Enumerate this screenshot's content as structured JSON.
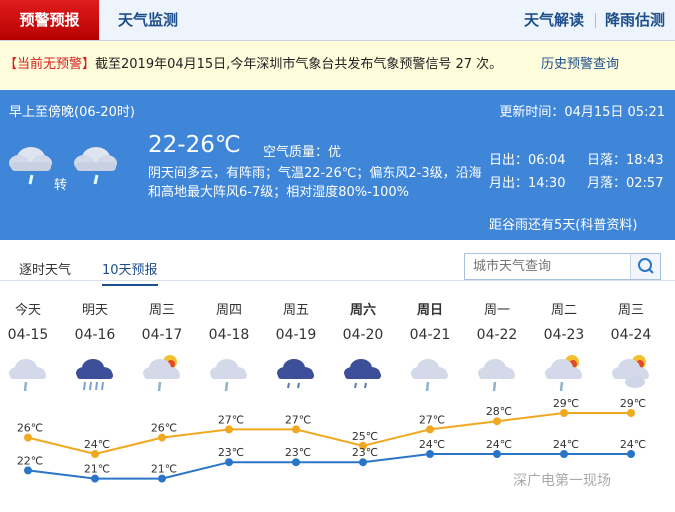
{
  "nav": {
    "active": "预警预报",
    "monitor": "天气监测",
    "interpret": "天气解读",
    "rain": "降雨估测"
  },
  "warning": {
    "status": "【当前无预警】",
    "text": "截至2019年04月15日,今年深圳市气象台共发布气象预警信号 27 次。",
    "history": "历史预警查询"
  },
  "today": {
    "period": "早上至傍晚(06-20时)",
    "updated": "更新时间：04月15日 05:21",
    "temp": "22-26℃",
    "air": "空气质量：优",
    "desc": "阴天间多云，有阵雨；气温22-26℃；偏东风2-3级，沿海和高地最大阵风6-7级；相对湿度80%-100%",
    "turn": "转",
    "sunrise": "日出：06:04",
    "sunset": "日落：18:43",
    "moonrise": "月出：14:30",
    "moonset": "月落：02:57",
    "solar_term": "距谷雨还有5天(科普资料)",
    "icons": [
      "cloud-rain-icon",
      "cloud-rain-icon"
    ]
  },
  "tabs": {
    "hourly": "逐时天气",
    "ten_day": "10天预报"
  },
  "search": {
    "placeholder": "城市天气查询"
  },
  "forecast": [
    {
      "week": "今天",
      "date": "04-15",
      "icon": "light-rain",
      "high": 26,
      "low": 22
    },
    {
      "week": "明天",
      "date": "04-16",
      "icon": "heavy-rain",
      "high": 24,
      "low": 21
    },
    {
      "week": "周三",
      "date": "04-17",
      "icon": "sun-rain",
      "high": 26,
      "low": 21
    },
    {
      "week": "周四",
      "date": "04-18",
      "icon": "light-rain",
      "high": 27,
      "low": 23
    },
    {
      "week": "周五",
      "date": "04-19",
      "icon": "dark-rain",
      "high": 27,
      "low": 23
    },
    {
      "week": "周六",
      "date": "04-20",
      "icon": "dark-rain",
      "high": 25,
      "low": 23,
      "bold": true
    },
    {
      "week": "周日",
      "date": "04-21",
      "icon": "light-rain",
      "high": 27,
      "low": 24,
      "bold": true
    },
    {
      "week": "周一",
      "date": "04-22",
      "icon": "light-rain",
      "high": 28,
      "low": 24
    },
    {
      "week": "周二",
      "date": "04-23",
      "icon": "sun-rain",
      "high": 29,
      "low": 24
    },
    {
      "week": "周三",
      "date": "04-24",
      "icon": "partly-cloudy",
      "high": 29,
      "low": 24
    }
  ],
  "unit": "℃",
  "colors": {
    "high": "#f0a820",
    "low": "#2a75c8",
    "accent": "#1d4f8c",
    "panel": "#3f86d9"
  },
  "watermark": "深广电第一现场"
}
